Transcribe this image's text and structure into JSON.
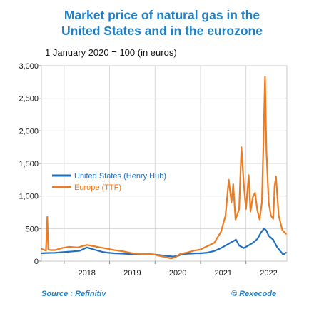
{
  "title_line1": "Market price of natural gas in the",
  "title_line2": "United States and in the eurozone",
  "subtitle": "1 January 2020 = 100 (in euros)",
  "source": "Source : Refinitiv",
  "credit": "© Rexecode",
  "colors": {
    "us": "#1f6fbf",
    "eu": "#ec7c22",
    "title": "#1f7fc7"
  },
  "chart_data": {
    "type": "line",
    "title": "Market price of natural gas in the United States and in the eurozone",
    "subtitle": "1 January 2020 = 100 (in euros)",
    "xlabel": "",
    "ylabel": "",
    "xlim": [
      2017.5,
      2022.9
    ],
    "ylim": [
      0,
      3000
    ],
    "x_ticks": [
      "2018",
      "2019",
      "2020",
      "2021",
      "2022"
    ],
    "y_ticks": [
      "0",
      "500",
      "1,000",
      "1,500",
      "2,000",
      "2,500",
      "3,000"
    ],
    "grid": true,
    "legend_position": "middle-left",
    "series": [
      {
        "name": "United States (Henry Hub)",
        "color": "#1f6fbf",
        "x": [
          2017.5,
          2017.6,
          2017.8,
          2018.0,
          2018.2,
          2018.35,
          2018.5,
          2018.7,
          2018.85,
          2018.95,
          2019.1,
          2019.3,
          2019.5,
          2019.7,
          2019.9,
          2020.0,
          2020.1,
          2020.25,
          2020.4,
          2020.5,
          2020.6,
          2020.75,
          2020.9,
          2021.0,
          2021.15,
          2021.3,
          2021.45,
          2021.6,
          2021.7,
          2021.78,
          2021.85,
          2021.95,
          2022.05,
          2022.15,
          2022.25,
          2022.33,
          2022.4,
          2022.45,
          2022.5,
          2022.6,
          2022.68,
          2022.75,
          2022.82,
          2022.88
        ],
        "values": [
          120,
          125,
          128,
          140,
          150,
          160,
          210,
          170,
          140,
          130,
          120,
          115,
          105,
          100,
          100,
          100,
          92,
          80,
          70,
          80,
          110,
          115,
          120,
          120,
          130,
          155,
          200,
          260,
          300,
          330,
          240,
          200,
          240,
          280,
          340,
          440,
          500,
          470,
          390,
          330,
          220,
          160,
          100,
          130
        ]
      },
      {
        "name": "Europe (TTF)",
        "color": "#ec7c22",
        "x": [
          2017.5,
          2017.6,
          2017.63,
          2017.65,
          2017.7,
          2017.8,
          2017.95,
          2018.1,
          2018.3,
          2018.5,
          2018.65,
          2018.8,
          2018.95,
          2019.1,
          2019.3,
          2019.5,
          2019.7,
          2019.9,
          2020.0,
          2020.1,
          2020.25,
          2020.35,
          2020.45,
          2020.55,
          2020.7,
          2020.85,
          2021.0,
          2021.15,
          2021.3,
          2021.45,
          2021.55,
          2021.62,
          2021.68,
          2021.72,
          2021.77,
          2021.85,
          2021.9,
          2021.95,
          2022.0,
          2022.06,
          2022.1,
          2022.15,
          2022.2,
          2022.25,
          2022.3,
          2022.35,
          2022.39,
          2022.42,
          2022.45,
          2022.5,
          2022.55,
          2022.6,
          2022.63,
          2022.66,
          2022.72,
          2022.8,
          2022.88
        ],
        "values": [
          190,
          160,
          680,
          180,
          170,
          170,
          200,
          220,
          210,
          250,
          230,
          210,
          190,
          170,
          150,
          120,
          110,
          110,
          100,
          80,
          60,
          40,
          60,
          110,
          130,
          160,
          180,
          230,
          280,
          450,
          700,
          1250,
          900,
          1180,
          640,
          800,
          1750,
          1200,
          800,
          1320,
          760,
          980,
          1050,
          780,
          640,
          900,
          1950,
          2830,
          1700,
          900,
          700,
          650,
          1150,
          1300,
          700,
          480,
          420
        ]
      }
    ]
  }
}
